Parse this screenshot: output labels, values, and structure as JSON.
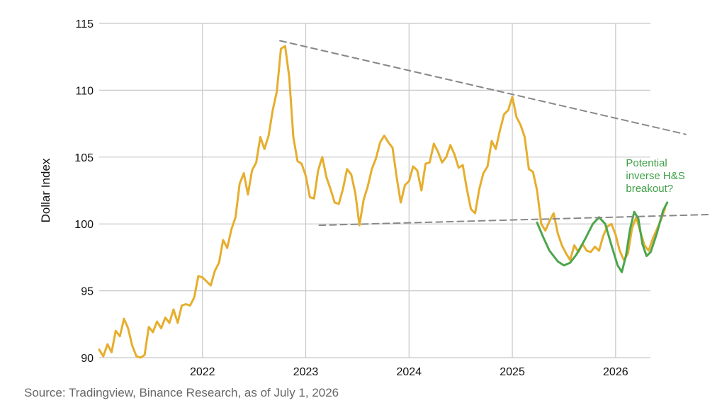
{
  "chart_data": {
    "type": "line",
    "title": "",
    "xlabel": "",
    "ylabel": "Dollar Index",
    "ylim": [
      90,
      115
    ],
    "xlim": [
      2021.0,
      2026.9
    ],
    "yticks": [
      90,
      95,
      100,
      105,
      110,
      115
    ],
    "xticks": [
      2022,
      2023,
      2024,
      2025,
      2026
    ],
    "grid": true,
    "series": [
      {
        "color": "#e6ae2e",
        "points": [
          [
            2021.0,
            90.6
          ],
          [
            2021.04,
            90.1
          ],
          [
            2021.08,
            91.0
          ],
          [
            2021.12,
            90.4
          ],
          [
            2021.16,
            92.0
          ],
          [
            2021.2,
            91.6
          ],
          [
            2021.24,
            92.9
          ],
          [
            2021.28,
            92.2
          ],
          [
            2021.32,
            90.9
          ],
          [
            2021.36,
            90.1
          ],
          [
            2021.4,
            90.0
          ],
          [
            2021.44,
            90.2
          ],
          [
            2021.48,
            92.3
          ],
          [
            2021.52,
            91.9
          ],
          [
            2021.56,
            92.7
          ],
          [
            2021.6,
            92.2
          ],
          [
            2021.64,
            93.0
          ],
          [
            2021.68,
            92.6
          ],
          [
            2021.72,
            93.6
          ],
          [
            2021.76,
            92.6
          ],
          [
            2021.8,
            93.9
          ],
          [
            2021.84,
            94.0
          ],
          [
            2021.88,
            93.9
          ],
          [
            2021.92,
            94.5
          ],
          [
            2021.96,
            96.1
          ],
          [
            2022.0,
            96.0
          ],
          [
            2022.04,
            95.7
          ],
          [
            2022.08,
            95.4
          ],
          [
            2022.12,
            96.5
          ],
          [
            2022.16,
            97.1
          ],
          [
            2022.2,
            98.8
          ],
          [
            2022.24,
            98.2
          ],
          [
            2022.28,
            99.6
          ],
          [
            2022.32,
            100.5
          ],
          [
            2022.36,
            103.0
          ],
          [
            2022.4,
            103.8
          ],
          [
            2022.44,
            102.2
          ],
          [
            2022.48,
            104.0
          ],
          [
            2022.52,
            104.6
          ],
          [
            2022.56,
            106.5
          ],
          [
            2022.6,
            105.6
          ],
          [
            2022.64,
            106.6
          ],
          [
            2022.68,
            108.5
          ],
          [
            2022.72,
            109.9
          ],
          [
            2022.76,
            113.1
          ],
          [
            2022.8,
            113.3
          ],
          [
            2022.84,
            111.0
          ],
          [
            2022.88,
            106.5
          ],
          [
            2022.92,
            104.7
          ],
          [
            2022.96,
            104.5
          ],
          [
            2023.0,
            103.6
          ],
          [
            2023.04,
            102.0
          ],
          [
            2023.08,
            101.9
          ],
          [
            2023.12,
            104.0
          ],
          [
            2023.16,
            105.0
          ],
          [
            2023.2,
            103.5
          ],
          [
            2023.24,
            102.6
          ],
          [
            2023.28,
            101.6
          ],
          [
            2023.32,
            101.5
          ],
          [
            2023.36,
            102.6
          ],
          [
            2023.4,
            104.1
          ],
          [
            2023.44,
            103.7
          ],
          [
            2023.48,
            102.3
          ],
          [
            2023.52,
            99.9
          ],
          [
            2023.56,
            101.8
          ],
          [
            2023.6,
            102.8
          ],
          [
            2023.64,
            104.1
          ],
          [
            2023.68,
            104.9
          ],
          [
            2023.72,
            106.1
          ],
          [
            2023.76,
            106.6
          ],
          [
            2023.8,
            106.1
          ],
          [
            2023.84,
            105.7
          ],
          [
            2023.88,
            103.5
          ],
          [
            2023.92,
            101.6
          ],
          [
            2023.96,
            102.9
          ],
          [
            2024.0,
            103.2
          ],
          [
            2024.04,
            104.3
          ],
          [
            2024.08,
            104.0
          ],
          [
            2024.12,
            102.5
          ],
          [
            2024.16,
            104.5
          ],
          [
            2024.2,
            104.6
          ],
          [
            2024.24,
            106.0
          ],
          [
            2024.28,
            105.4
          ],
          [
            2024.32,
            104.6
          ],
          [
            2024.36,
            105.0
          ],
          [
            2024.4,
            105.9
          ],
          [
            2024.44,
            105.2
          ],
          [
            2024.48,
            104.2
          ],
          [
            2024.52,
            104.4
          ],
          [
            2024.56,
            102.6
          ],
          [
            2024.6,
            101.1
          ],
          [
            2024.64,
            100.8
          ],
          [
            2024.68,
            102.6
          ],
          [
            2024.72,
            103.8
          ],
          [
            2024.76,
            104.3
          ],
          [
            2024.8,
            106.2
          ],
          [
            2024.84,
            105.6
          ],
          [
            2024.88,
            107.0
          ],
          [
            2024.92,
            108.2
          ],
          [
            2024.96,
            108.5
          ],
          [
            2025.0,
            109.5
          ],
          [
            2025.04,
            108.0
          ],
          [
            2025.08,
            107.4
          ],
          [
            2025.12,
            106.5
          ],
          [
            2025.16,
            104.1
          ],
          [
            2025.2,
            103.9
          ],
          [
            2025.24,
            102.5
          ],
          [
            2025.28,
            100.0
          ],
          [
            2025.32,
            99.5
          ],
          [
            2025.36,
            100.2
          ],
          [
            2025.4,
            100.8
          ],
          [
            2025.44,
            99.3
          ],
          [
            2025.48,
            98.4
          ],
          [
            2025.52,
            97.8
          ],
          [
            2025.56,
            97.3
          ],
          [
            2025.6,
            98.4
          ],
          [
            2025.64,
            97.9
          ],
          [
            2025.68,
            98.5
          ],
          [
            2025.72,
            98.0
          ],
          [
            2025.76,
            97.9
          ],
          [
            2025.8,
            98.3
          ],
          [
            2025.84,
            98.0
          ],
          [
            2025.88,
            99.1
          ],
          [
            2025.92,
            99.8
          ],
          [
            2025.96,
            100.0
          ],
          [
            2026.0,
            99.2
          ],
          [
            2026.04,
            98.0
          ],
          [
            2026.08,
            97.3
          ],
          [
            2026.12,
            97.8
          ],
          [
            2026.16,
            99.7
          ],
          [
            2026.2,
            100.5
          ],
          [
            2026.24,
            99.4
          ],
          [
            2026.28,
            98.4
          ],
          [
            2026.32,
            98.0
          ],
          [
            2026.36,
            98.9
          ],
          [
            2026.4,
            99.6
          ],
          [
            2026.44,
            100.3
          ],
          [
            2026.48,
            101.2
          ]
        ]
      },
      {
        "color": "#4ca64c",
        "points": [
          [
            2025.24,
            100.1
          ],
          [
            2025.3,
            99.0
          ],
          [
            2025.36,
            98.0
          ],
          [
            2025.44,
            97.2
          ],
          [
            2025.5,
            96.9
          ],
          [
            2025.56,
            97.1
          ],
          [
            2025.62,
            97.7
          ],
          [
            2025.7,
            98.8
          ],
          [
            2025.78,
            100.0
          ],
          [
            2025.84,
            100.5
          ],
          [
            2025.9,
            100.0
          ],
          [
            2025.96,
            98.4
          ],
          [
            2026.02,
            96.9
          ],
          [
            2026.06,
            96.4
          ],
          [
            2026.1,
            97.6
          ],
          [
            2026.14,
            99.6
          ],
          [
            2026.18,
            100.9
          ],
          [
            2026.22,
            100.4
          ],
          [
            2026.26,
            98.5
          ],
          [
            2026.3,
            97.6
          ],
          [
            2026.34,
            97.9
          ],
          [
            2026.4,
            99.3
          ],
          [
            2026.46,
            101.0
          ],
          [
            2026.5,
            101.6
          ]
        ]
      },
      {
        "color": "#888888",
        "dashed": true,
        "points": [
          [
            2022.75,
            113.7
          ],
          [
            2026.68,
            106.7
          ]
        ]
      },
      {
        "color": "#888888",
        "dashed": true,
        "points": [
          [
            2023.13,
            99.9
          ],
          [
            2026.9,
            100.7
          ]
        ]
      }
    ],
    "annotations": [
      {
        "lines": [
          "Potential",
          "inverse H&S",
          "breakout?"
        ],
        "x": 2026.1,
        "y": 104.3,
        "color": "#3fa046"
      }
    ]
  },
  "source_note": "Source: Tradingview, Binance Research, as of July 1, 2026"
}
